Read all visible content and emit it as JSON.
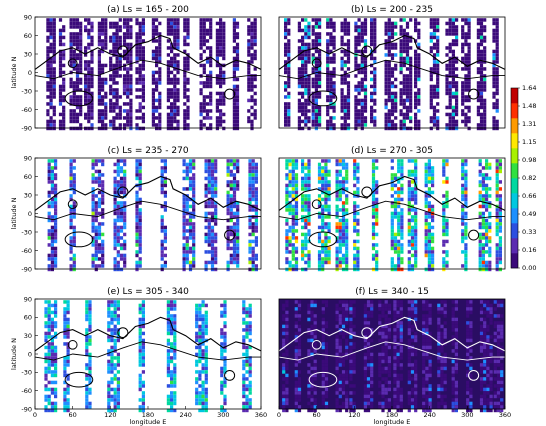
{
  "figure": {
    "panels": [
      {
        "title": "(a) Ls = 165 - 200",
        "dark": false,
        "ylabel": "latitude N",
        "xlabel": ""
      },
      {
        "title": "(b) Ls = 200 - 235",
        "dark": false,
        "ylabel": "",
        "xlabel": ""
      },
      {
        "title": "(c) Ls = 235 - 270",
        "dark": false,
        "ylabel": "latitude N",
        "xlabel": ""
      },
      {
        "title": "(d) Ls = 270 - 305",
        "dark": false,
        "ylabel": "",
        "xlabel": ""
      },
      {
        "title": "(e) Ls = 305 - 340",
        "dark": false,
        "ylabel": "latitude N",
        "xlabel": "longitude E"
      },
      {
        "title": "(f) Ls = 340 - 15",
        "dark": true,
        "ylabel": "",
        "xlabel": "longitude E"
      }
    ],
    "x_ticks": [
      "0",
      "60",
      "120",
      "180",
      "240",
      "300",
      "360"
    ],
    "y_ticks": [
      "90",
      "60",
      "30",
      "0",
      "-30",
      "-60",
      "-90"
    ],
    "colorbar": {
      "ticks": [
        "1.64",
        "1.48",
        "1.31",
        "1.15",
        "0.98",
        "0.82",
        "0.66",
        "0.49",
        "0.33",
        "0.16",
        "0.00"
      ],
      "colors": [
        "#3b0a7a",
        "#5b2bb0",
        "#2c4fe0",
        "#1e90ff",
        "#00c8e0",
        "#00d8a0",
        "#30e040",
        "#a8f000",
        "#ffe800",
        "#ff9a00",
        "#ff3000",
        "#c00000"
      ]
    }
  },
  "chart_data": [
    {
      "type": "heatmap",
      "title": "(a) Ls = 165 - 200",
      "xlabel": "",
      "ylabel": "latitude N",
      "xlim": [
        0,
        360
      ],
      "ylim": [
        -90,
        90
      ],
      "swaths_lon": [
        18,
        38,
        55,
        78,
        100,
        118,
        140,
        160,
        186,
        210,
        236,
        262,
        288,
        315,
        338
      ],
      "typical_value": 0.05,
      "max_value": 0.4
    },
    {
      "type": "heatmap",
      "title": "(b) Ls = 200 - 235",
      "xlabel": "",
      "ylabel": "",
      "xlim": [
        0,
        360
      ],
      "ylim": [
        -90,
        90
      ],
      "swaths_lon": [
        8,
        30,
        52,
        75,
        98,
        120,
        145,
        168,
        192,
        215,
        240,
        265,
        290,
        315,
        340
      ],
      "typical_value": 0.05,
      "max_value": 0.9
    },
    {
      "type": "heatmap",
      "title": "(c) Ls = 235 - 270",
      "xlabel": "",
      "ylabel": "latitude N",
      "xlim": [
        0,
        360
      ],
      "ylim": [
        -90,
        90
      ],
      "swaths_lon": [
        20,
        55,
        90,
        125,
        160,
        200,
        235,
        270,
        305,
        340
      ],
      "typical_value": 0.3,
      "max_value": 1.1
    },
    {
      "type": "heatmap",
      "title": "(d) Ls = 270 - 305",
      "xlabel": "",
      "ylabel": "",
      "xlim": [
        0,
        360
      ],
      "ylim": [
        -90,
        90
      ],
      "swaths_lon": [
        10,
        35,
        62,
        90,
        118,
        148,
        178,
        205,
        232,
        260,
        290,
        318,
        345
      ],
      "typical_value": 0.6,
      "max_value": 1.64
    },
    {
      "type": "heatmap",
      "title": "(e) Ls = 305 - 340",
      "xlabel": "longitude E",
      "ylabel": "latitude N",
      "xlim": [
        0,
        360
      ],
      "ylim": [
        -90,
        90
      ],
      "swaths_lon": [
        15,
        45,
        80,
        115,
        165,
        210,
        255,
        295,
        330
      ],
      "typical_value": 0.5,
      "max_value": 1.0
    },
    {
      "type": "heatmap",
      "title": "(f) Ls = 340 - 15",
      "xlabel": "longitude E",
      "ylabel": "",
      "xlim": [
        0,
        360
      ],
      "ylim": [
        -90,
        90
      ],
      "swaths_lon": [
        5,
        25,
        45,
        68,
        90,
        112,
        135,
        158,
        182,
        205,
        228,
        252,
        275,
        298,
        320,
        342
      ],
      "typical_value": 0.12,
      "max_value": 0.6
    }
  ]
}
